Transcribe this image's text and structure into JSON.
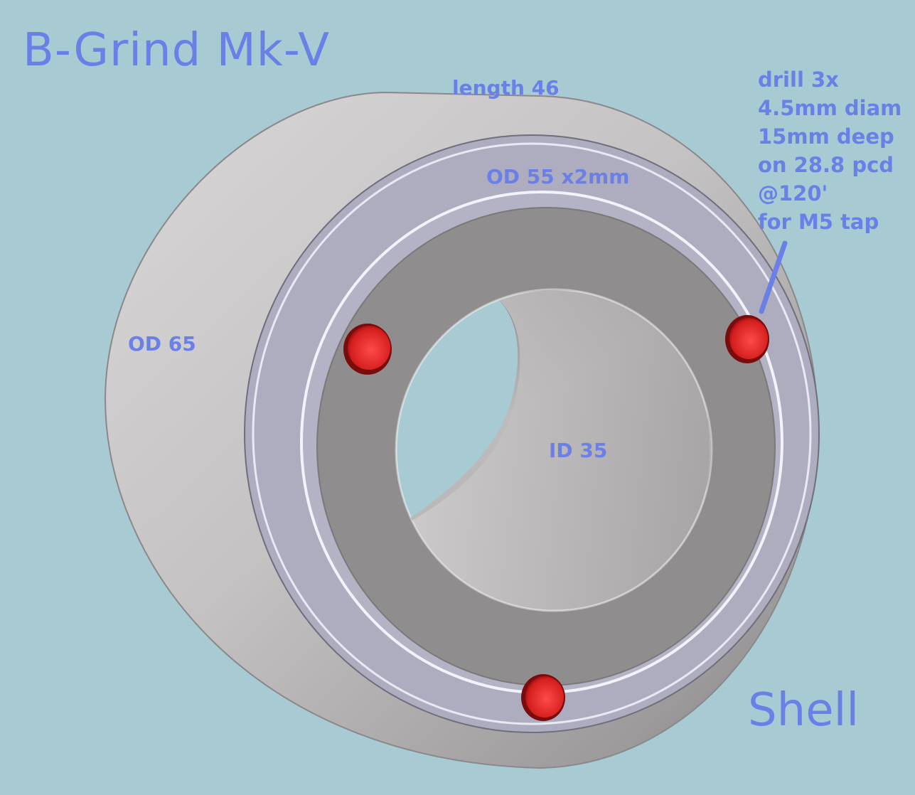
{
  "title": "B-Grind Mk-V",
  "part_name": "Shell",
  "dimensions": {
    "length": "length 46",
    "outer_diameter": "OD 65",
    "recess": "OD 55 x2mm",
    "inner_diameter": "ID 35"
  },
  "drill_note": [
    "drill 3x",
    "4.5mm diam",
    "15mm deep",
    "on 28.8 pcd",
    "@120'",
    "for M5 tap"
  ],
  "colors": {
    "background": "#a8cbd3",
    "label": "#6a80e6",
    "body": "#bdbbbc",
    "face_ring": "#aeadc0",
    "recess_face": "#8f8d8d",
    "hole": "#e02a2a"
  }
}
